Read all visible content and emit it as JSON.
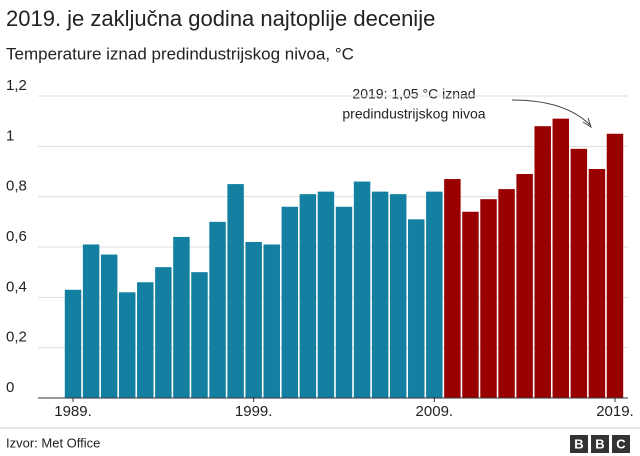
{
  "chart_data": {
    "type": "bar",
    "title": "2019. je zaključna godina najtoplije decenije",
    "subtitle": "Temperature iznad predindustrijskog nivoa, °C",
    "categories": [
      "1989.",
      null,
      null,
      null,
      null,
      null,
      null,
      null,
      null,
      null,
      "1999.",
      null,
      null,
      null,
      null,
      null,
      null,
      null,
      null,
      null,
      "2009.",
      null,
      null,
      null,
      null,
      null,
      null,
      null,
      null,
      null,
      "2019."
    ],
    "values": [
      0.43,
      0.61,
      0.57,
      0.42,
      0.46,
      0.52,
      0.64,
      0.5,
      0.7,
      0.85,
      0.62,
      0.61,
      0.76,
      0.81,
      0.82,
      0.76,
      0.86,
      0.82,
      0.81,
      0.71,
      0.82,
      0.87,
      0.74,
      0.79,
      0.83,
      0.89,
      1.08,
      1.11,
      0.99,
      0.91,
      1.05
    ],
    "bar_colors": [
      "#1380a1",
      "#1380a1",
      "#1380a1",
      "#1380a1",
      "#1380a1",
      "#1380a1",
      "#1380a1",
      "#1380a1",
      "#1380a1",
      "#1380a1",
      "#1380a1",
      "#1380a1",
      "#1380a1",
      "#1380a1",
      "#1380a1",
      "#1380a1",
      "#1380a1",
      "#1380a1",
      "#1380a1",
      "#1380a1",
      "#1380a1",
      "#990000",
      "#990000",
      "#990000",
      "#990000",
      "#990000",
      "#990000",
      "#990000",
      "#990000",
      "#990000",
      "#990000"
    ],
    "ylim": [
      0,
      1.2
    ],
    "yticks": [
      0,
      {
        "value": 0.2,
        "label": "0,2"
      },
      {
        "value": 0.4,
        "label": "0,4"
      },
      {
        "value": 0.6,
        "label": "0,6"
      },
      {
        "value": 0.8,
        "label": "0,8"
      },
      1,
      {
        "value": 1.2,
        "label": "1,2"
      }
    ],
    "grid": true,
    "annotation": [
      "2019: 1,05 °C iznad",
      "predindustrijskog nivoa"
    ],
    "source": "Izvor: Met Office",
    "logo": [
      "B",
      "B",
      "C"
    ]
  }
}
